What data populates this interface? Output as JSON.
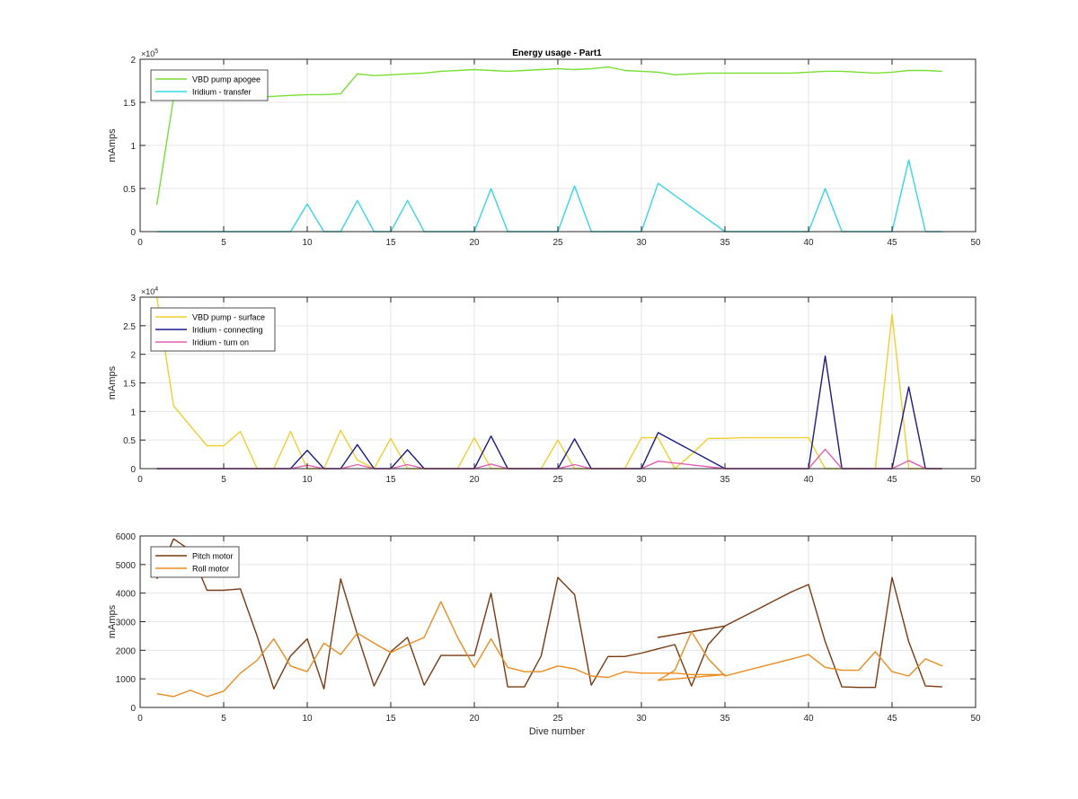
{
  "figure": {
    "title": "Energy usage - Part1",
    "xlabel": "Dive number"
  },
  "chart_data": [
    {
      "type": "line",
      "title": "Energy usage - Part1",
      "xlabel": "",
      "ylabel": "mAmps",
      "xlim": [
        0,
        50
      ],
      "ylim": [
        0,
        200000
      ],
      "y_exponent_label": "×10",
      "y_exponent": "5",
      "y_scale": 100000,
      "xticks": [
        0,
        5,
        10,
        15,
        20,
        25,
        30,
        35,
        40,
        45,
        50
      ],
      "yticks": [
        0,
        0.5,
        1,
        1.5,
        2
      ],
      "grid": true,
      "legend": "top-left",
      "series": [
        {
          "name": "VBD pump apogee",
          "color": "#77e032",
          "x": [
            1,
            2,
            3,
            4,
            5,
            6,
            7,
            8,
            9,
            10,
            11,
            12,
            13,
            14,
            15,
            16,
            17,
            18,
            19,
            20,
            21,
            22,
            23,
            24,
            25,
            26,
            27,
            28,
            29,
            30,
            31,
            32,
            33,
            34,
            35,
            36,
            37,
            38,
            39,
            40,
            41,
            42,
            43,
            44,
            45,
            46,
            47,
            48
          ],
          "y": [
            31000,
            155000,
            160000,
            158000,
            157000,
            157000,
            156000,
            157000,
            158000,
            159000,
            159000,
            160000,
            183000,
            181000,
            182000,
            183000,
            184000,
            186000,
            187000,
            188000,
            187000,
            186000,
            187000,
            188000,
            189000,
            188000,
            189000,
            191000,
            187000,
            186000,
            185000,
            182000,
            183000,
            184000,
            184000,
            184000,
            184000,
            184000,
            184000,
            185000,
            186000,
            186000,
            185000,
            184000,
            185000,
            187000,
            187000,
            186000
          ]
        },
        {
          "name": "Iridium - transfer",
          "color": "#33d8e6",
          "x": [
            1,
            2,
            3,
            4,
            5,
            6,
            7,
            8,
            9,
            10,
            11,
            12,
            13,
            14,
            15,
            16,
            17,
            18,
            19,
            20,
            21,
            22,
            23,
            24,
            25,
            26,
            27,
            28,
            29,
            30,
            31,
            35,
            36,
            37,
            38,
            39,
            40,
            41,
            42,
            43,
            44,
            45,
            46,
            47,
            48
          ],
          "y": [
            0,
            0,
            0,
            0,
            0,
            0,
            0,
            0,
            0,
            32000,
            0,
            0,
            36000,
            0,
            0,
            36000,
            0,
            0,
            0,
            0,
            50000,
            0,
            0,
            0,
            0,
            53000,
            0,
            0,
            0,
            0,
            56000,
            0,
            0,
            0,
            0,
            0,
            0,
            50000,
            0,
            0,
            0,
            0,
            83000,
            0,
            0
          ]
        }
      ]
    },
    {
      "type": "line",
      "title": "",
      "xlabel": "",
      "ylabel": "mAmps",
      "xlim": [
        0,
        50
      ],
      "ylim": [
        0,
        30000
      ],
      "y_exponent_label": "×10",
      "y_exponent": "4",
      "y_scale": 10000,
      "xticks": [
        0,
        5,
        10,
        15,
        20,
        25,
        30,
        35,
        40,
        45,
        50
      ],
      "yticks": [
        0,
        0.5,
        1,
        1.5,
        2,
        2.5,
        3
      ],
      "grid": true,
      "legend": "top-left",
      "series": [
        {
          "name": "VBD pump - surface",
          "color": "#f0d02a",
          "x": [
            1,
            2,
            3,
            4,
            5,
            6,
            7,
            8,
            9,
            10,
            11,
            12,
            13,
            14,
            15,
            16,
            17,
            18,
            19,
            20,
            21,
            22,
            23,
            24,
            25,
            26,
            27,
            28,
            29,
            30,
            31,
            32,
            33,
            34,
            35,
            36,
            37,
            38,
            39,
            40,
            41,
            42,
            43,
            44,
            45,
            46,
            47,
            48
          ],
          "y": [
            30000,
            11000,
            7500,
            4000,
            4000,
            6500,
            0,
            0,
            6500,
            0,
            0,
            6700,
            1500,
            0,
            5300,
            0,
            0,
            0,
            0,
            5400,
            0,
            0,
            0,
            0,
            5000,
            0,
            0,
            0,
            0,
            5400,
            5400,
            0,
            2500,
            5300,
            5300,
            5400,
            5400,
            5400,
            5400,
            5400,
            0,
            0,
            0,
            0,
            27000,
            0,
            0,
            0
          ]
        },
        {
          "name": "Iridium - connecting",
          "color": "#1a1a8c",
          "x": [
            1,
            2,
            3,
            4,
            5,
            6,
            7,
            8,
            9,
            10,
            11,
            12,
            13,
            14,
            15,
            16,
            17,
            18,
            19,
            20,
            21,
            22,
            23,
            24,
            25,
            26,
            27,
            28,
            29,
            30,
            31,
            35,
            36,
            37,
            38,
            39,
            40,
            41,
            42,
            43,
            44,
            45,
            46,
            47,
            48
          ],
          "y": [
            0,
            0,
            0,
            0,
            0,
            0,
            0,
            0,
            0,
            3200,
            0,
            0,
            4200,
            0,
            0,
            3300,
            0,
            0,
            0,
            0,
            5700,
            0,
            0,
            0,
            0,
            5200,
            0,
            0,
            0,
            0,
            6300,
            0,
            0,
            0,
            0,
            0,
            0,
            19700,
            0,
            0,
            0,
            0,
            14300,
            0,
            0
          ]
        },
        {
          "name": "Iridium - turn on",
          "color": "#e35fb4",
          "x": [
            1,
            2,
            3,
            4,
            5,
            6,
            7,
            8,
            9,
            10,
            11,
            12,
            13,
            14,
            15,
            16,
            17,
            18,
            19,
            20,
            21,
            22,
            23,
            24,
            25,
            26,
            27,
            28,
            29,
            30,
            31,
            35,
            36,
            37,
            38,
            39,
            40,
            41,
            42,
            43,
            44,
            45,
            46,
            47,
            48
          ],
          "y": [
            0,
            0,
            0,
            0,
            0,
            0,
            0,
            0,
            0,
            600,
            0,
            0,
            700,
            0,
            0,
            700,
            0,
            0,
            0,
            0,
            800,
            0,
            0,
            0,
            0,
            700,
            0,
            0,
            0,
            0,
            1300,
            0,
            0,
            0,
            0,
            0,
            0,
            3400,
            0,
            0,
            0,
            0,
            1400,
            0,
            0
          ]
        }
      ]
    },
    {
      "type": "line",
      "title": "",
      "xlabel": "Dive number",
      "ylabel": "mAmps",
      "xlim": [
        0,
        50
      ],
      "ylim": [
        0,
        6000
      ],
      "y_scale": 1,
      "xticks": [
        0,
        5,
        10,
        15,
        20,
        25,
        30,
        35,
        40,
        45,
        50
      ],
      "yticks": [
        0,
        1000,
        2000,
        3000,
        4000,
        5000,
        6000
      ],
      "grid": true,
      "legend": "top-left",
      "series": [
        {
          "name": "Pitch motor",
          "color": "#7a3a10",
          "x": [
            1,
            2,
            3,
            4,
            5,
            6,
            7,
            8,
            9,
            10,
            11,
            12,
            13,
            14,
            15,
            16,
            17,
            18,
            19,
            20,
            21,
            22,
            23,
            24,
            25,
            26,
            27,
            28,
            29,
            30,
            31,
            32,
            33,
            34,
            35,
            31,
            32,
            33,
            34,
            35,
            36,
            37,
            38,
            39,
            40,
            41,
            42,
            43,
            44,
            45,
            46,
            47,
            48
          ],
          "y": [
            4500,
            5900,
            5500,
            4100,
            4100,
            4150,
            2500,
            650,
            1800,
            2400,
            650,
            4500,
            2550,
            750,
            1950,
            2450,
            780,
            1820,
            1820,
            1820,
            4000,
            720,
            720,
            1800,
            4550,
            3950,
            780,
            1780,
            1780,
            1900,
            2050,
            2200,
            750,
            2200,
            2850,
            2450,
            2550,
            2650,
            2750,
            2850,
            3150,
            3450,
            3750,
            4050,
            4300,
            2300,
            720,
            700,
            700,
            4550,
            2300,
            750,
            720
          ]
        },
        {
          "name": "Roll motor",
          "color": "#ec8c1c",
          "x": [
            1,
            2,
            3,
            4,
            5,
            6,
            7,
            8,
            9,
            10,
            11,
            12,
            13,
            14,
            15,
            16,
            17,
            18,
            19,
            20,
            21,
            22,
            23,
            24,
            25,
            26,
            27,
            28,
            29,
            30,
            31,
            32,
            33,
            34,
            35,
            31,
            32,
            33,
            34,
            35,
            36,
            37,
            38,
            39,
            40,
            41,
            42,
            43,
            44,
            45,
            46,
            47,
            48
          ],
          "y": [
            480,
            380,
            600,
            380,
            570,
            1200,
            1650,
            2400,
            1450,
            1250,
            2250,
            1850,
            2600,
            2250,
            1920,
            2200,
            2450,
            3700,
            2450,
            1400,
            2400,
            1400,
            1250,
            1250,
            1450,
            1350,
            1100,
            1050,
            1250,
            1200,
            1200,
            1200,
            1150,
            1150,
            1150,
            950,
            1300,
            2650,
            1700,
            1100,
            1250,
            1400,
            1550,
            1700,
            1850,
            1400,
            1300,
            1300,
            1950,
            1250,
            1100,
            1700,
            1450
          ]
        }
      ]
    }
  ]
}
